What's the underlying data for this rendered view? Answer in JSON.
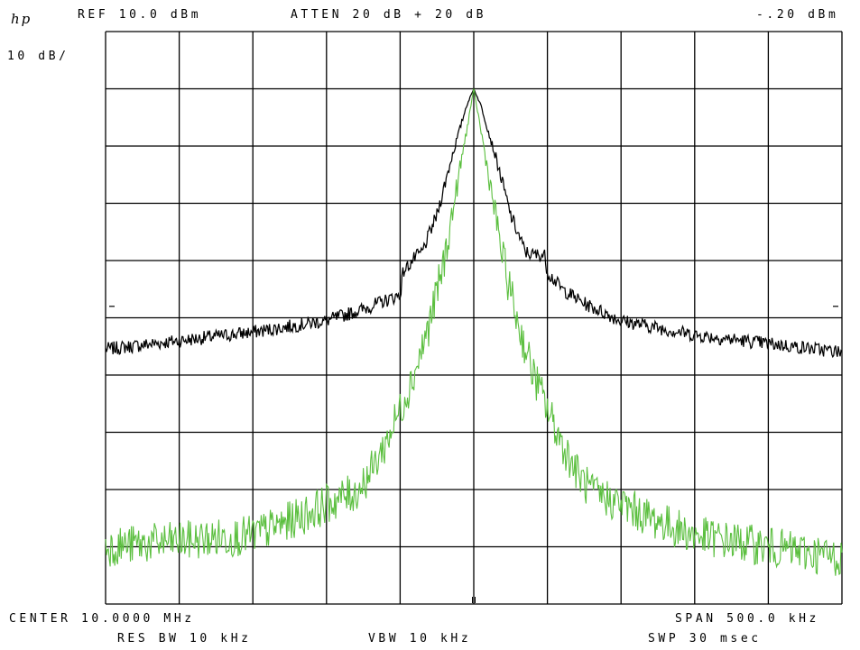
{
  "header": {
    "logo": "hp",
    "ref": "REF 10.0 dBm",
    "atten": "ATTEN 20 dB + 20 dB",
    "marker": "-.20 dBm",
    "scale": "10 dB/"
  },
  "footer": {
    "center": "CENTER 10.0000 MHz",
    "span": "SPAN 500.0 kHz",
    "rbw": "RES BW 10 kHz",
    "vbw": "VBW 10 kHz",
    "swp": "SWP 30 msec"
  },
  "colors": {
    "background": "#ffffff",
    "grid": "#000000",
    "trace_a": "#000000",
    "trace_b": "#5bbf3f"
  },
  "chart_data": {
    "type": "line",
    "x_unit": "kHz offset from center",
    "y_unit": "dBm",
    "xlim": [
      -250,
      250
    ],
    "ylim": [
      -90,
      10
    ],
    "grid": true,
    "x_divisions": 10,
    "y_divisions": 10,
    "series": [
      {
        "color": "#000000",
        "noise_dB": 1.2,
        "x": [
          -250,
          -200,
          -150,
          -100,
          -75,
          -60,
          -50,
          -48,
          -40,
          -35,
          -25,
          -15,
          -5,
          0,
          5,
          15,
          25,
          35,
          40,
          45,
          48,
          50,
          60,
          75,
          100,
          150,
          200,
          250
        ],
        "y": [
          -45.5,
          -44,
          -42.5,
          -40.5,
          -38.5,
          -37,
          -36,
          -32,
          -29.5,
          -28.5,
          -22,
          -12,
          -3,
          0,
          -3,
          -12,
          -22,
          -28.5,
          -29,
          -29,
          -29,
          -32,
          -35,
          -37.5,
          -40.5,
          -43,
          -44.5,
          -46
        ]
      },
      {
        "color": "#5bbf3f",
        "noise_dB": 3.5,
        "x": [
          -250,
          -200,
          -150,
          -120,
          -100,
          -80,
          -70,
          -60,
          -50,
          -40,
          -30,
          -20,
          -10,
          0,
          10,
          20,
          30,
          40,
          50,
          60,
          70,
          80,
          100,
          120,
          150,
          200,
          250
        ],
        "y": [
          -80,
          -79,
          -78,
          -75,
          -72.5,
          -70.5,
          -67,
          -62,
          -56,
          -49.5,
          -41,
          -30,
          -15,
          0,
          -15,
          -30,
          -41,
          -49.5,
          -56,
          -62,
          -67,
          -70.5,
          -72.5,
          -75,
          -78,
          -80,
          -82
        ]
      }
    ]
  }
}
